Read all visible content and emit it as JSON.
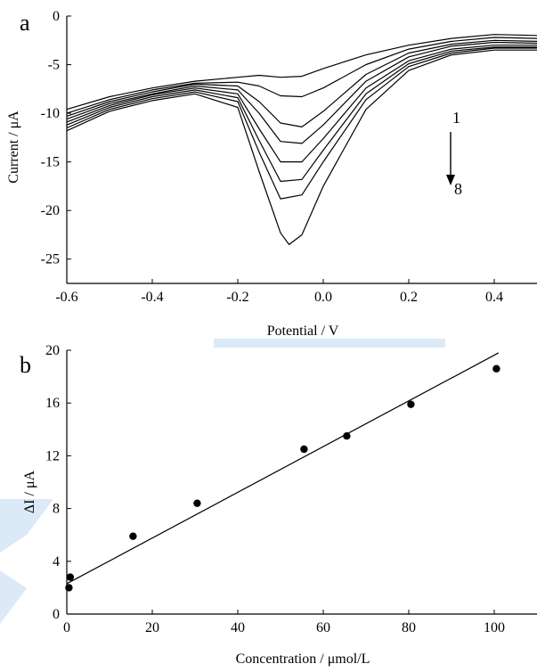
{
  "chart_data": [
    {
      "panel_label": "a",
      "type": "line",
      "xlabel": "Potential / V",
      "ylabel": "Current / μA",
      "xlim": [
        -0.6,
        0.5
      ],
      "ylim": [
        -27.5,
        0
      ],
      "xticks": [
        -0.6,
        -0.4,
        -0.2,
        0.0,
        0.2,
        0.4
      ],
      "xtick_labels": [
        "-0.6",
        "-0.4",
        "-0.2",
        "0.0",
        "0.2",
        "0.4"
      ],
      "yticks": [
        0,
        -5,
        -10,
        -15,
        -20,
        -25
      ],
      "ytick_labels": [
        "0",
        "-5",
        "-10",
        "-15",
        "-20",
        "-25"
      ],
      "annotations": {
        "start": "1",
        "end": "8"
      },
      "series": [
        {
          "points": [
            [
              -0.6,
              -9.6
            ],
            [
              -0.5,
              -8.3
            ],
            [
              -0.4,
              -7.4
            ],
            [
              -0.3,
              -6.7
            ],
            [
              -0.2,
              -6.3
            ],
            [
              -0.15,
              -6.1
            ],
            [
              -0.1,
              -6.3
            ],
            [
              -0.05,
              -6.2
            ],
            [
              0.0,
              -5.4
            ],
            [
              0.1,
              -4.0
            ],
            [
              0.2,
              -3.0
            ],
            [
              0.3,
              -2.3
            ],
            [
              0.4,
              -1.9
            ],
            [
              0.5,
              -2.0
            ]
          ]
        },
        {
          "points": [
            [
              -0.6,
              -10.0
            ],
            [
              -0.5,
              -8.6
            ],
            [
              -0.4,
              -7.6
            ],
            [
              -0.3,
              -6.9
            ],
            [
              -0.2,
              -6.8
            ],
            [
              -0.15,
              -7.2
            ],
            [
              -0.1,
              -8.2
            ],
            [
              -0.05,
              -8.3
            ],
            [
              0.0,
              -7.4
            ],
            [
              0.1,
              -5.0
            ],
            [
              0.2,
              -3.4
            ],
            [
              0.3,
              -2.6
            ],
            [
              0.4,
              -2.2
            ],
            [
              0.5,
              -2.3
            ]
          ]
        },
        {
          "points": [
            [
              -0.6,
              -10.3
            ],
            [
              -0.5,
              -8.8
            ],
            [
              -0.4,
              -7.8
            ],
            [
              -0.3,
              -7.0
            ],
            [
              -0.2,
              -7.2
            ],
            [
              -0.15,
              -8.8
            ],
            [
              -0.1,
              -11.0
            ],
            [
              -0.05,
              -11.4
            ],
            [
              0.0,
              -9.8
            ],
            [
              0.1,
              -6.0
            ],
            [
              0.2,
              -3.8
            ],
            [
              0.3,
              -2.9
            ],
            [
              0.4,
              -2.5
            ],
            [
              0.5,
              -2.6
            ]
          ]
        },
        {
          "points": [
            [
              -0.6,
              -10.6
            ],
            [
              -0.5,
              -9.0
            ],
            [
              -0.4,
              -8.0
            ],
            [
              -0.3,
              -7.2
            ],
            [
              -0.2,
              -7.6
            ],
            [
              -0.15,
              -10.0
            ],
            [
              -0.1,
              -12.9
            ],
            [
              -0.05,
              -13.1
            ],
            [
              0.0,
              -11.2
            ],
            [
              0.1,
              -6.7
            ],
            [
              0.2,
              -4.2
            ],
            [
              0.3,
              -3.1
            ],
            [
              0.4,
              -2.7
            ],
            [
              0.5,
              -2.8
            ]
          ]
        },
        {
          "points": [
            [
              -0.6,
              -10.9
            ],
            [
              -0.5,
              -9.2
            ],
            [
              -0.4,
              -8.1
            ],
            [
              -0.3,
              -7.4
            ],
            [
              -0.2,
              -8.0
            ],
            [
              -0.15,
              -11.6
            ],
            [
              -0.1,
              -15.0
            ],
            [
              -0.05,
              -15.0
            ],
            [
              0.0,
              -12.6
            ],
            [
              0.1,
              -7.4
            ],
            [
              0.2,
              -4.6
            ],
            [
              0.3,
              -3.4
            ],
            [
              0.4,
              -3.0
            ],
            [
              0.5,
              -3.0
            ]
          ]
        },
        {
          "points": [
            [
              -0.6,
              -11.2
            ],
            [
              -0.5,
              -9.4
            ],
            [
              -0.4,
              -8.3
            ],
            [
              -0.3,
              -7.6
            ],
            [
              -0.2,
              -8.4
            ],
            [
              -0.15,
              -12.8
            ],
            [
              -0.1,
              -17.0
            ],
            [
              -0.05,
              -16.8
            ],
            [
              0.0,
              -13.8
            ],
            [
              0.1,
              -8.0
            ],
            [
              0.2,
              -4.9
            ],
            [
              0.3,
              -3.6
            ],
            [
              0.4,
              -3.2
            ],
            [
              0.5,
              -3.2
            ]
          ]
        },
        {
          "points": [
            [
              -0.6,
              -11.5
            ],
            [
              -0.5,
              -9.6
            ],
            [
              -0.4,
              -8.5
            ],
            [
              -0.3,
              -7.8
            ],
            [
              -0.2,
              -8.8
            ],
            [
              -0.15,
              -14.0
            ],
            [
              -0.1,
              -18.8
            ],
            [
              -0.05,
              -18.4
            ],
            [
              0.0,
              -15.0
            ],
            [
              0.1,
              -8.6
            ],
            [
              0.2,
              -5.2
            ],
            [
              0.3,
              -3.8
            ],
            [
              0.4,
              -3.3
            ],
            [
              0.5,
              -3.3
            ]
          ]
        },
        {
          "points": [
            [
              -0.6,
              -11.8
            ],
            [
              -0.5,
              -9.8
            ],
            [
              -0.4,
              -8.7
            ],
            [
              -0.3,
              -8.0
            ],
            [
              -0.2,
              -9.4
            ],
            [
              -0.15,
              -16.0
            ],
            [
              -0.1,
              -22.3
            ],
            [
              -0.08,
              -23.5
            ],
            [
              -0.05,
              -22.5
            ],
            [
              0.0,
              -17.5
            ],
            [
              0.1,
              -9.6
            ],
            [
              0.2,
              -5.6
            ],
            [
              0.3,
              -4.0
            ],
            [
              0.4,
              -3.5
            ],
            [
              0.5,
              -3.5
            ]
          ]
        }
      ]
    },
    {
      "panel_label": "b",
      "type": "scatter",
      "xlabel": "Concentration / μmol/L",
      "ylabel": "ΔI / μA",
      "xlim": [
        0,
        110
      ],
      "ylim": [
        0,
        20
      ],
      "xticks": [
        0,
        20,
        40,
        60,
        80,
        100
      ],
      "xtick_labels": [
        "0",
        "20",
        "40",
        "60",
        "80",
        "100"
      ],
      "yticks": [
        0,
        4,
        8,
        12,
        16,
        20
      ],
      "ytick_labels": [
        "0",
        "4",
        "8",
        "12",
        "16",
        "20"
      ],
      "points": [
        {
          "x": 0.5,
          "y": 2.0
        },
        {
          "x": 0.8,
          "y": 2.8
        },
        {
          "x": 15.5,
          "y": 5.9
        },
        {
          "x": 30.5,
          "y": 8.4
        },
        {
          "x": 55.5,
          "y": 12.5
        },
        {
          "x": 65.5,
          "y": 13.5
        },
        {
          "x": 80.5,
          "y": 15.9
        },
        {
          "x": 100.5,
          "y": 18.6
        }
      ],
      "fit_line": {
        "x": [
          0,
          101
        ],
        "y": [
          2.3,
          19.8
        ]
      }
    }
  ]
}
